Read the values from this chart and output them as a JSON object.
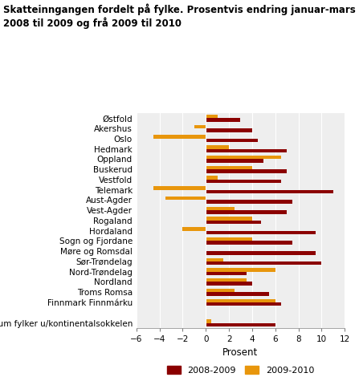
{
  "title": "Skatteinngangen fordelt på fylke. Prosentvis endring januar-mars frå\n2008 til 2009 og frå 2009 til 2010",
  "categories": [
    "Østfold",
    "Akershus",
    "Oslo",
    "Hedmark",
    "Oppland",
    "Buskerud",
    "Vestfold",
    "Telemark",
    "Aust-Agder",
    "Vest-Agder",
    "Rogaland",
    "Hordaland",
    "Sogn og Fjordane",
    "Møre og Romsdal",
    "Sør-Trøndelag",
    "Nord-Trøndelag",
    "Nordland",
    "Troms Romsa",
    "Finnmark Finnmárku",
    "",
    "Sum fylker u/kontinentalsokkelen"
  ],
  "values_2008_2009": [
    3.0,
    4.0,
    4.5,
    7.0,
    5.0,
    7.0,
    6.5,
    11.0,
    7.5,
    7.0,
    4.8,
    9.5,
    7.5,
    9.5,
    10.0,
    3.5,
    4.0,
    5.5,
    6.5,
    null,
    6.0
  ],
  "values_2009_2010": [
    1.0,
    -1.0,
    -4.5,
    2.0,
    6.5,
    4.0,
    1.0,
    -4.5,
    -3.5,
    2.5,
    4.0,
    -2.0,
    4.0,
    0.0,
    1.5,
    6.0,
    3.5,
    2.5,
    6.0,
    null,
    0.5
  ],
  "color_2008_2009": "#8B0000",
  "color_2009_2010": "#E8960C",
  "xlabel": "Prosent",
  "xlim": [
    -6,
    12
  ],
  "xticks": [
    -6,
    -4,
    -2,
    0,
    2,
    4,
    6,
    8,
    10,
    12
  ],
  "legend_labels": [
    "2008-2009",
    "2009-2010"
  ],
  "background_color": "#eeeeee",
  "title_fontsize": 8.5,
  "axis_fontsize": 7.5,
  "xlabel_fontsize": 8.5
}
